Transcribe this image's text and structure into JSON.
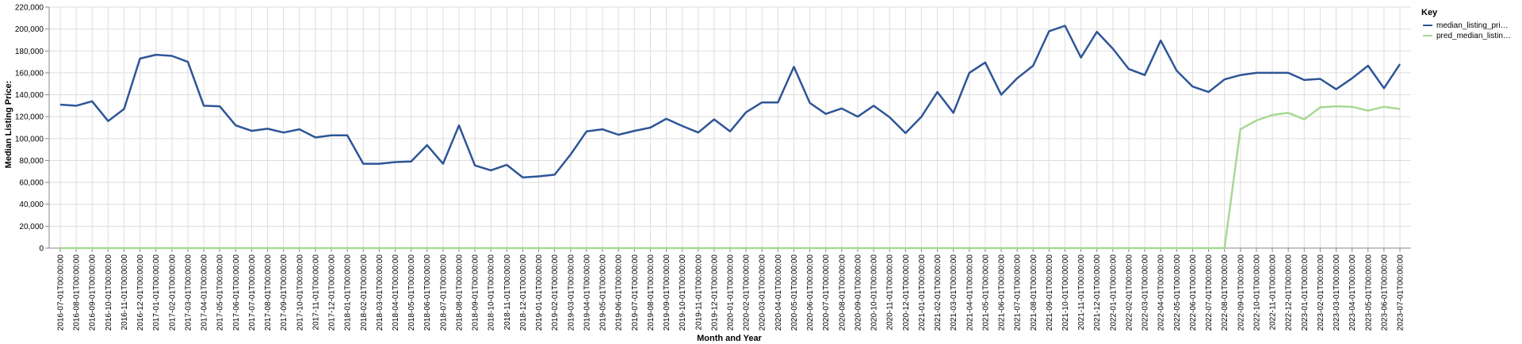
{
  "chart_data": {
    "type": "line",
    "xlabel": "Month and Year",
    "ylabel": "Median Listing Price:",
    "ylim": [
      0,
      220000
    ],
    "yticks": [
      "0",
      "20,000",
      "40,000",
      "60,000",
      "80,000",
      "100,000",
      "120,000",
      "140,000",
      "160,000",
      "180,000",
      "200,000",
      "220,000"
    ],
    "grid": true,
    "legend_position": "top-right",
    "legend_title": "Key",
    "colors": {
      "median": "#2e5597",
      "pred": "#a6d995"
    },
    "x": [
      "2016-07-01T00:00:00",
      "2016-08-01T00:00:00",
      "2016-09-01T00:00:00",
      "2016-10-01T00:00:00",
      "2016-11-01T00:00:00",
      "2016-12-01T00:00:00",
      "2017-01-01T00:00:00",
      "2017-02-01T00:00:00",
      "2017-03-01T00:00:00",
      "2017-04-01T00:00:00",
      "2017-05-01T00:00:00",
      "2017-06-01T00:00:00",
      "2017-07-01T00:00:00",
      "2017-08-01T00:00:00",
      "2017-09-01T00:00:00",
      "2017-10-01T00:00:00",
      "2017-11-01T00:00:00",
      "2017-12-01T00:00:00",
      "2018-01-01T00:00:00",
      "2018-02-01T00:00:00",
      "2018-03-01T00:00:00",
      "2018-04-01T00:00:00",
      "2018-05-01T00:00:00",
      "2018-06-01T00:00:00",
      "2018-07-01T00:00:00",
      "2018-08-01T00:00:00",
      "2018-09-01T00:00:00",
      "2018-10-01T00:00:00",
      "2018-11-01T00:00:00",
      "2018-12-01T00:00:00",
      "2019-01-01T00:00:00",
      "2019-02-01T00:00:00",
      "2019-03-01T00:00:00",
      "2019-04-01T00:00:00",
      "2019-05-01T00:00:00",
      "2019-06-01T00:00:00",
      "2019-07-01T00:00:00",
      "2019-08-01T00:00:00",
      "2019-09-01T00:00:00",
      "2019-10-01T00:00:00",
      "2019-11-01T00:00:00",
      "2019-12-01T00:00:00",
      "2020-01-01T00:00:00",
      "2020-02-01T00:00:00",
      "2020-03-01T00:00:00",
      "2020-04-01T00:00:00",
      "2020-05-01T00:00:00",
      "2020-06-01T00:00:00",
      "2020-07-01T00:00:00",
      "2020-08-01T00:00:00",
      "2020-09-01T00:00:00",
      "2020-10-01T00:00:00",
      "2020-11-01T00:00:00",
      "2020-12-01T00:00:00",
      "2021-01-01T00:00:00",
      "2021-02-01T00:00:00",
      "2021-03-01T00:00:00",
      "2021-04-01T00:00:00",
      "2021-05-01T00:00:00",
      "2021-06-01T00:00:00",
      "2021-07-01T00:00:00",
      "2021-08-01T00:00:00",
      "2021-09-01T00:00:00",
      "2021-10-01T00:00:00",
      "2021-11-01T00:00:00",
      "2021-12-01T00:00:00",
      "2022-01-01T00:00:00",
      "2022-02-01T00:00:00",
      "2022-03-01T00:00:00",
      "2022-04-01T00:00:00",
      "2022-05-01T00:00:00",
      "2022-06-01T00:00:00",
      "2022-07-01T00:00:00",
      "2022-08-01T00:00:00",
      "2022-09-01T00:00:00",
      "2022-10-01T00:00:00",
      "2022-11-01T00:00:00",
      "2022-12-01T00:00:00",
      "2023-01-01T00:00:00",
      "2023-02-01T00:00:00",
      "2023-03-01T00:00:00",
      "2023-04-01T00:00:00",
      "2023-05-01T00:00:00",
      "2023-06-01T00:00:00",
      "2023-07-01T00:00:00"
    ],
    "series": [
      {
        "name": "median_listing_pri…",
        "values": [
          131000,
          130000,
          134000,
          116000,
          127000,
          173000,
          176500,
          175500,
          170000,
          130000,
          129500,
          112000,
          107000,
          109000,
          105500,
          108500,
          101000,
          103000,
          103000,
          77000,
          77000,
          78500,
          79000,
          94000,
          77000,
          112000,
          75500,
          71000,
          76000,
          64500,
          65500,
          67000,
          85500,
          106500,
          108500,
          103500,
          107000,
          110000,
          118000,
          111500,
          105500,
          117500,
          106500,
          124000,
          133000,
          133000,
          165500,
          132500,
          122500,
          127500,
          120000,
          130000,
          119500,
          105000,
          120000,
          142500,
          123500,
          160000,
          169500,
          140000,
          155000,
          166500,
          198000,
          203000,
          174000,
          197500,
          182000,
          163500,
          158000,
          189500,
          162000,
          147500,
          142500,
          154000,
          158000,
          160000,
          160000,
          160000,
          153500,
          154500,
          145000,
          155000,
          166500,
          146000,
          168000
        ]
      },
      {
        "name": "pred_median_listin…",
        "values": [
          0,
          0,
          0,
          0,
          0,
          0,
          0,
          0,
          0,
          0,
          0,
          0,
          0,
          0,
          0,
          0,
          0,
          0,
          0,
          0,
          0,
          0,
          0,
          0,
          0,
          0,
          0,
          0,
          0,
          0,
          0,
          0,
          0,
          0,
          0,
          0,
          0,
          0,
          0,
          0,
          0,
          0,
          0,
          0,
          0,
          0,
          0,
          0,
          0,
          0,
          0,
          0,
          0,
          0,
          0,
          0,
          0,
          0,
          0,
          0,
          0,
          0,
          0,
          0,
          0,
          0,
          0,
          0,
          0,
          0,
          0,
          0,
          0,
          0,
          108500,
          116500,
          121500,
          123500,
          117500,
          128500,
          129500,
          129000,
          125500,
          129000,
          127000
        ]
      }
    ]
  }
}
